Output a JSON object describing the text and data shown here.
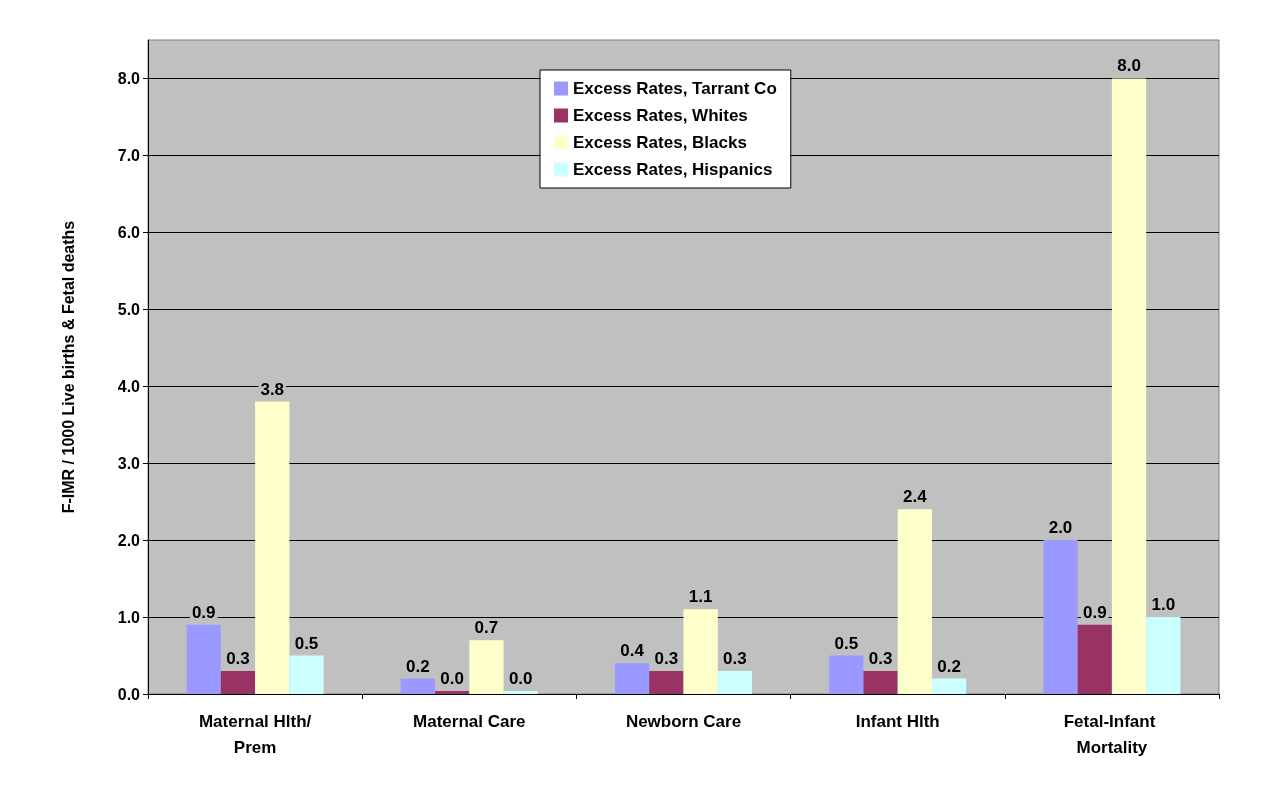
{
  "chart_data": {
    "type": "bar",
    "ylabel": "F-IMR / 1000 Live births & Fetal deaths",
    "categories": [
      "Maternal Hlth/Prem",
      "Maternal Care",
      "Newborn Care",
      "Infant Hlth",
      "Fetal-Infant Mortality"
    ],
    "series": [
      {
        "name": "Excess Rates, Tarrant Co",
        "color": "#9999ff",
        "values": [
          0.9,
          0.2,
          0.4,
          0.5,
          2.0
        ],
        "value_labels": [
          "0.9",
          "0.2",
          "0.4",
          "0.5",
          "2.0"
        ]
      },
      {
        "name": "Excess Rates, Whites",
        "color": "#993366",
        "values": [
          0.3,
          0.0,
          0.3,
          0.3,
          0.9
        ],
        "value_labels": [
          "0.3",
          "0.0",
          "0.3",
          "0.3",
          "0.9"
        ]
      },
      {
        "name": "Excess Rates, Blacks",
        "color": "#ffffcc",
        "values": [
          3.8,
          0.7,
          1.1,
          2.4,
          8.0
        ],
        "value_labels": [
          "3.8",
          "0.7",
          "1.1",
          "2.4",
          "8.0"
        ]
      },
      {
        "name": "Excess Rates, Hispanics",
        "color": "#ccffff",
        "values": [
          0.5,
          0.0,
          0.3,
          0.2,
          1.0
        ],
        "value_labels": [
          "0.5",
          "0.0",
          "0.3",
          "0.2",
          "1.0"
        ]
      }
    ],
    "ylim": [
      0,
      8.5
    ],
    "yticks": [
      {
        "value": 0,
        "label": "0.0"
      },
      {
        "value": 1,
        "label": "1.0"
      },
      {
        "value": 2,
        "label": "2.0"
      },
      {
        "value": 3,
        "label": "3.0"
      },
      {
        "value": 4,
        "label": "4.0"
      },
      {
        "value": 5,
        "label": "5.0"
      },
      {
        "value": 6,
        "label": "6.0"
      },
      {
        "value": 7,
        "label": "7.0"
      },
      {
        "value": 8,
        "label": "8.0"
      }
    ],
    "grid": "y",
    "legend": "top"
  }
}
